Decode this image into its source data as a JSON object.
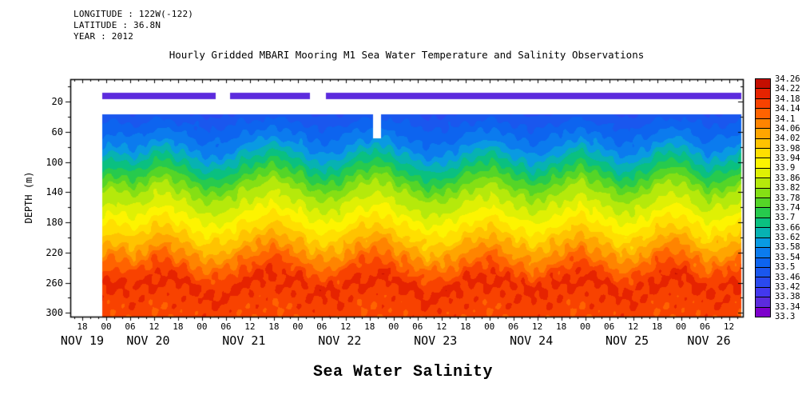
{
  "header": {
    "longitude": "LONGITUDE : 122W(-122)",
    "latitude": "LATITUDE : 36.8N",
    "year": "YEAR : 2012"
  },
  "title": "Hourly Gridded MBARI Mooring M1 Sea Water Temperature and Salinity Observations",
  "bottom_title": "Sea Water Salinity",
  "chart_data": {
    "type": "heatmap",
    "title": "Hourly Gridded MBARI Mooring M1 Sea Water Temperature and Salinity Observations",
    "xlabel": "",
    "ylabel": "DEPTH (m)",
    "grid": false,
    "legend_position": "right-colorbar",
    "x_axis": {
      "epoch": "hours relative to NOV 20 00:00, 2012",
      "range_hours": [
        -9,
        159.5
      ],
      "tick_start_hour": -6,
      "tick_step_hours": 6,
      "tick_labels": [
        "18",
        "00",
        "06",
        "12",
        "18",
        "00",
        "06",
        "12",
        "18",
        "00",
        "06",
        "12",
        "18",
        "00",
        "06",
        "12",
        "18",
        "00",
        "06",
        "12",
        "18",
        "00",
        "06",
        "12",
        "18",
        "00",
        "06",
        "12"
      ],
      "date_labels": [
        {
          "label": "NOV 19",
          "hour": -6
        },
        {
          "label": "NOV 20",
          "hour": 10.5
        },
        {
          "label": "NOV 21",
          "hour": 34.5
        },
        {
          "label": "NOV 22",
          "hour": 58.5
        },
        {
          "label": "NOV 23",
          "hour": 82.5
        },
        {
          "label": "NOV 24",
          "hour": 106.5
        },
        {
          "label": "NOV 25",
          "hour": 130.5
        },
        {
          "label": "NOV 26",
          "hour": 151
        }
      ]
    },
    "y_axis": {
      "label": "DEPTH (m)",
      "ticks_m": [
        20,
        60,
        100,
        140,
        180,
        220,
        260,
        300
      ],
      "minor_ticks_m": [
        0,
        40,
        80,
        120,
        160,
        200,
        240,
        280
      ],
      "range_m": [
        -10,
        305
      ]
    },
    "colorbar": {
      "min": 33.3,
      "max": 34.26,
      "step": 0.04,
      "tick_labels": [
        "34.26",
        "34.22",
        "34.18",
        "34.14",
        "34.1",
        "34.06",
        "34.02",
        "33.98",
        "33.94",
        "33.9",
        "33.86",
        "33.82",
        "33.78",
        "33.74",
        "33.7",
        "33.66",
        "33.62",
        "33.58",
        "33.54",
        "33.5",
        "33.46",
        "33.42",
        "33.38",
        "33.34",
        "33.3"
      ],
      "segment_colors": [
        "#7d00cc",
        "#5c2bdd",
        "#4338ee",
        "#2a49ee",
        "#1a57ee",
        "#0d64ef",
        "#0b7bee",
        "#099ae2",
        "#07b2b2",
        "#0ac080",
        "#27ca4d",
        "#55d527",
        "#85df14",
        "#b5e90b",
        "#dff004",
        "#fdf400",
        "#ffdf00",
        "#ffc300",
        "#ffa500",
        "#ff8400",
        "#ff6300",
        "#f84200",
        "#e62300",
        "#c40e00"
      ]
    },
    "surface_band": {
      "value_psu": 33.37,
      "depth_range_m": [
        8,
        16
      ],
      "time_range_hours": [
        -1,
        159
      ],
      "gap_ranges_hours": [
        [
          27.5,
          31
        ],
        [
          51,
          55
        ]
      ]
    },
    "field": {
      "time_range_hours": [
        -1,
        159
      ],
      "depth_range_m": [
        37,
        305
      ],
      "gap": {
        "time_range_hours": [
          66.8,
          68.8
        ],
        "depth_range_m": [
          37,
          68
        ]
      },
      "profile": {
        "depths_m": [
          0,
          37,
          60,
          80,
          100,
          120,
          140,
          160,
          180,
          200,
          220,
          240,
          260,
          280,
          305
        ],
        "salinity_psu": [
          33.3,
          33.47,
          33.53,
          33.58,
          33.66,
          33.74,
          33.82,
          33.87,
          33.93,
          33.99,
          34.06,
          34.13,
          34.19,
          34.17,
          34.15
        ]
      },
      "halocline_shift": {
        "start_hour": -1,
        "step_hours": 4,
        "values_m": [
          -2,
          5,
          -6,
          9,
          14,
          3,
          -9,
          -15,
          -7,
          4,
          12,
          17,
          6,
          -5,
          -13,
          -4,
          8,
          15,
          10,
          -3,
          -11,
          -16,
          -7,
          3,
          12,
          7,
          -5,
          -12,
          -6,
          6,
          14,
          4,
          -8,
          -14,
          -2,
          10,
          16,
          2,
          -10,
          -4,
          7
        ]
      }
    }
  }
}
